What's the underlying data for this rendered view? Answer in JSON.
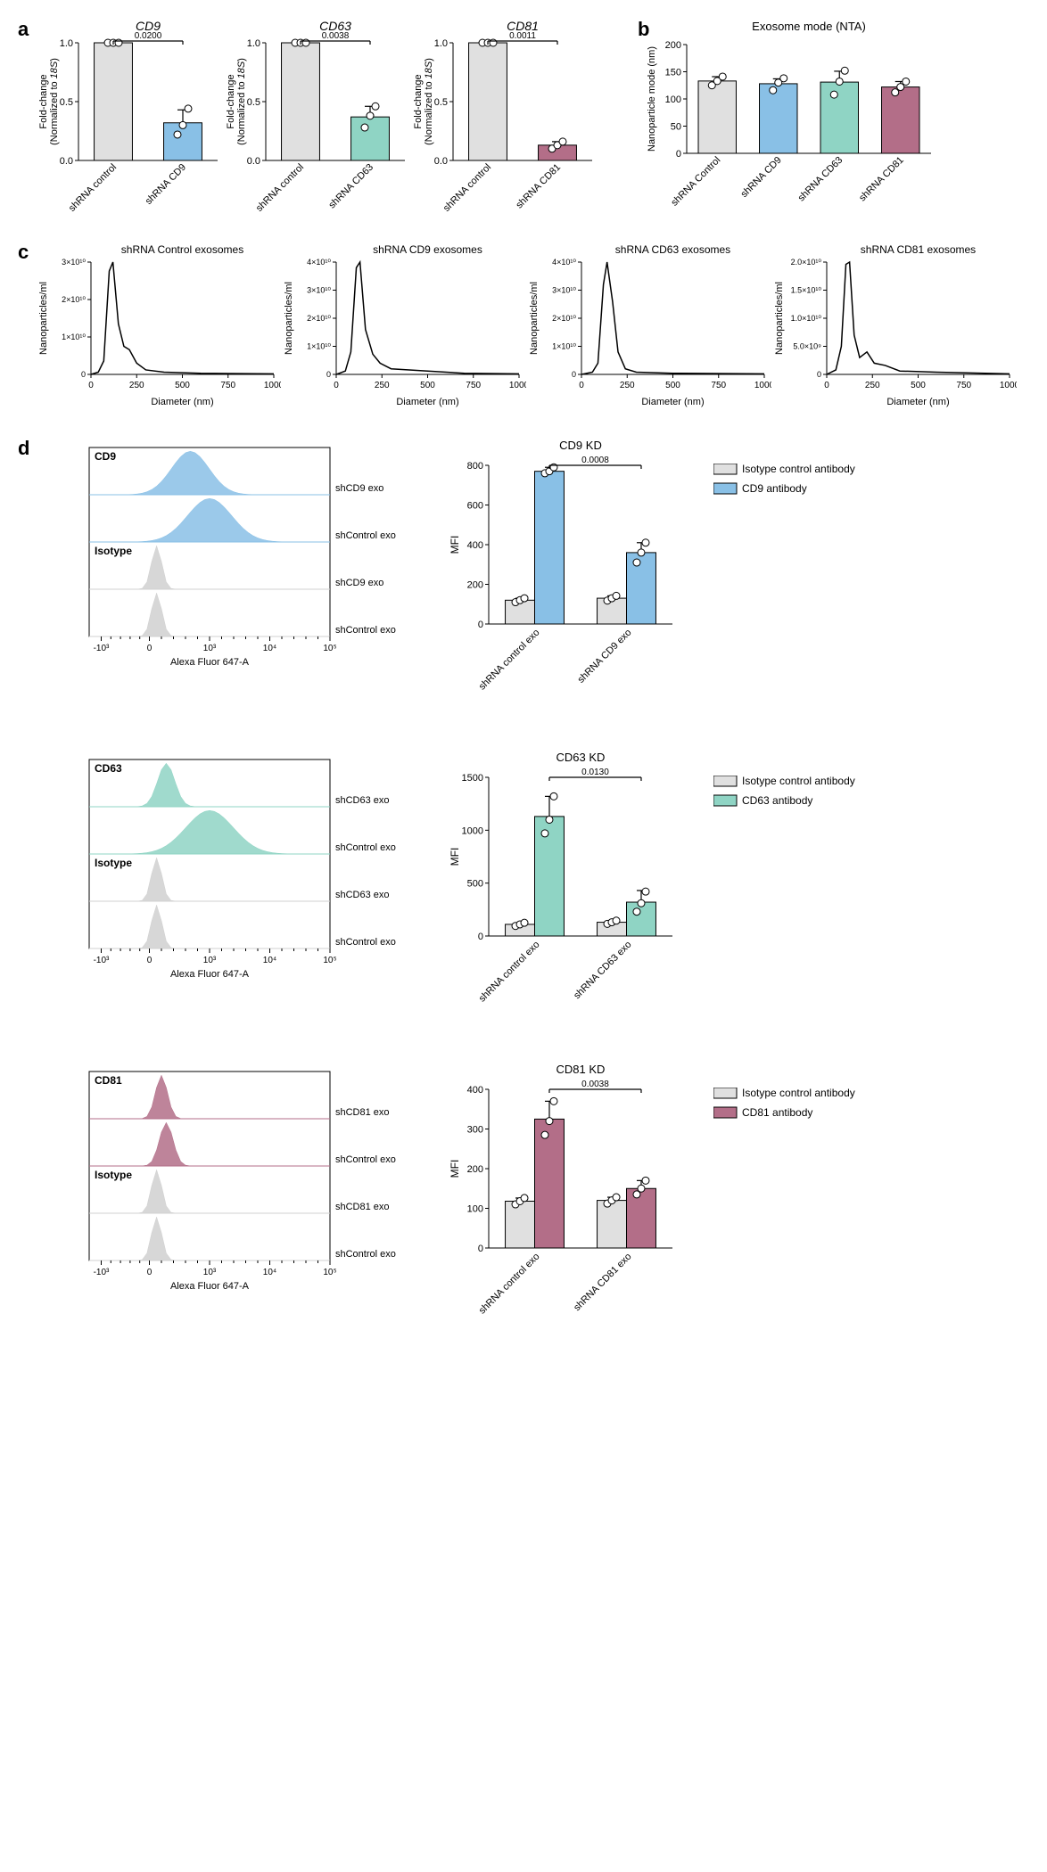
{
  "colors": {
    "control_gray": "#e0e0e0",
    "cd9_blue": "#89c0e6",
    "cd63_teal": "#8fd4c4",
    "cd81_plum": "#b36e88",
    "isotype_gray": "#d0d0d0",
    "axis": "#000000",
    "grid_bg": "#ffffff",
    "line_black": "#000000"
  },
  "panel_a": {
    "ylabel1": "Fold-change",
    "ylabel2": "(Normalized to ",
    "ylabel2_it": "18S",
    "ylabel2_end": ")",
    "ymax": 1.0,
    "ytick_step": 0.5,
    "charts": [
      {
        "title": "CD9",
        "pvalue": "0.0200",
        "categories": [
          "shRNA control",
          "shRNA CD9"
        ],
        "values": [
          1.0,
          0.32
        ],
        "errs": [
          0.0,
          0.11
        ],
        "dots": [
          [
            1.0,
            1.0,
            1.0
          ],
          [
            0.22,
            0.3,
            0.44
          ]
        ],
        "bar_colors": [
          "control_gray",
          "cd9_blue"
        ]
      },
      {
        "title": "CD63",
        "pvalue": "0.0038",
        "categories": [
          "shRNA control",
          "shRNA CD63"
        ],
        "values": [
          1.0,
          0.37
        ],
        "errs": [
          0.0,
          0.09
        ],
        "dots": [
          [
            1.0,
            1.0,
            1.0
          ],
          [
            0.28,
            0.38,
            0.46
          ]
        ],
        "bar_colors": [
          "control_gray",
          "cd63_teal"
        ]
      },
      {
        "title": "CD81",
        "pvalue": "0.0011",
        "categories": [
          "shRNA control",
          "shRNA CD81"
        ],
        "values": [
          1.0,
          0.13
        ],
        "errs": [
          0.0,
          0.03
        ],
        "dots": [
          [
            1.0,
            1.0,
            1.0
          ],
          [
            0.1,
            0.13,
            0.16
          ]
        ],
        "bar_colors": [
          "control_gray",
          "cd81_plum"
        ]
      }
    ]
  },
  "panel_b": {
    "title": "Exosome mode (NTA)",
    "ylabel": "Nanoparticle mode (nm)",
    "ymax": 200,
    "ytick_step": 50,
    "categories": [
      "shRNA Control",
      "shRNA CD9",
      "shRNA CD63",
      "shRNA CD81"
    ],
    "values": [
      133,
      128,
      131,
      122
    ],
    "errs": [
      8,
      9,
      20,
      10
    ],
    "dots": [
      [
        125,
        133,
        141
      ],
      [
        116,
        130,
        138
      ],
      [
        108,
        132,
        152
      ],
      [
        112,
        122,
        132
      ]
    ],
    "bar_colors": [
      "control_gray",
      "cd9_blue",
      "cd63_teal",
      "cd81_plum"
    ]
  },
  "panel_c": {
    "xlabel": "Diameter (nm)",
    "ylabel": "Nanoparticles/ml",
    "xmax": 1000,
    "xtick_step": 250,
    "charts": [
      {
        "title": "shRNA Control exosomes",
        "ymax": 30000000000.0,
        "yticks": [
          0,
          10000000000.0,
          20000000000.0,
          30000000000.0
        ],
        "ytick_labels": [
          "0",
          "1×10¹⁰",
          "2×10¹⁰",
          "3×10¹⁰"
        ]
      },
      {
        "title": "shRNA CD9 exosomes",
        "ymax": 40000000000.0,
        "yticks": [
          0,
          10000000000.0,
          20000000000.0,
          30000000000.0,
          40000000000.0
        ],
        "ytick_labels": [
          "0",
          "1×10¹⁰",
          "2×10¹⁰",
          "3×10¹⁰",
          "4×10¹⁰"
        ]
      },
      {
        "title": "shRNA CD63 exosomes",
        "ymax": 40000000000.0,
        "yticks": [
          0,
          10000000000.0,
          20000000000.0,
          30000000000.0,
          40000000000.0
        ],
        "ytick_labels": [
          "0",
          "1×10¹⁰",
          "2×10¹⁰",
          "3×10¹⁰",
          "4×10¹⁰"
        ]
      },
      {
        "title": "shRNA CD81 exosomes",
        "ymax": 20000000000.0,
        "yticks": [
          0,
          5000000000.0,
          10000000000.0,
          15000000000.0,
          20000000000.0
        ],
        "ytick_labels": [
          "0",
          "5.0×10⁹",
          "1.0×10¹⁰",
          "1.5×10¹⁰",
          "2.0×10¹⁰"
        ]
      }
    ],
    "curves": [
      [
        [
          0,
          0
        ],
        [
          40,
          0.02
        ],
        [
          70,
          0.12
        ],
        [
          100,
          0.92
        ],
        [
          120,
          1.0
        ],
        [
          150,
          0.45
        ],
        [
          180,
          0.25
        ],
        [
          210,
          0.22
        ],
        [
          250,
          0.1
        ],
        [
          300,
          0.04
        ],
        [
          400,
          0.02
        ],
        [
          600,
          0.01
        ],
        [
          1000,
          0.005
        ]
      ],
      [
        [
          0,
          0
        ],
        [
          50,
          0.03
        ],
        [
          80,
          0.2
        ],
        [
          110,
          0.95
        ],
        [
          130,
          1.0
        ],
        [
          160,
          0.4
        ],
        [
          200,
          0.18
        ],
        [
          240,
          0.1
        ],
        [
          300,
          0.05
        ],
        [
          400,
          0.04
        ],
        [
          500,
          0.03
        ],
        [
          700,
          0.01
        ],
        [
          1000,
          0.005
        ]
      ],
      [
        [
          0,
          0
        ],
        [
          60,
          0.02
        ],
        [
          90,
          0.1
        ],
        [
          120,
          0.8
        ],
        [
          140,
          1.0
        ],
        [
          170,
          0.65
        ],
        [
          200,
          0.2
        ],
        [
          240,
          0.05
        ],
        [
          300,
          0.02
        ],
        [
          500,
          0.01
        ],
        [
          1000,
          0.005
        ]
      ],
      [
        [
          0,
          0
        ],
        [
          50,
          0.04
        ],
        [
          80,
          0.25
        ],
        [
          105,
          0.98
        ],
        [
          125,
          1.0
        ],
        [
          150,
          0.35
        ],
        [
          180,
          0.15
        ],
        [
          220,
          0.2
        ],
        [
          260,
          0.1
        ],
        [
          320,
          0.08
        ],
        [
          400,
          0.03
        ],
        [
          600,
          0.02
        ],
        [
          1000,
          0.005
        ]
      ]
    ]
  },
  "panel_d": {
    "xlabel": "Alexa Fluor 647-A",
    "xlog_ticks": [
      "-10³",
      "0",
      "10³",
      "10⁴",
      "10⁵"
    ],
    "flow_rows": [
      {
        "antibody": "CD9",
        "antibody_color": "cd9_blue",
        "traces": [
          {
            "label": "shCD9 exo",
            "color": "cd9_blue",
            "peak_pos": 0.42,
            "width": 0.22
          },
          {
            "label": "shControl exo",
            "color": "cd9_blue",
            "peak_pos": 0.5,
            "width": 0.26
          },
          {
            "label": "shCD9 exo",
            "color": "isotype_gray",
            "peak_pos": 0.28,
            "width": 0.06
          },
          {
            "label": "shControl exo",
            "color": "isotype_gray",
            "peak_pos": 0.28,
            "width": 0.06
          }
        ],
        "isotype_label": "Isotype",
        "bar": {
          "title": "CD9 KD",
          "pvalue": "0.0008",
          "ylabel": "MFI",
          "ymax": 800,
          "ytick_step": 200,
          "groups": [
            "shRNA control exo",
            "shRNA CD9 exo"
          ],
          "legend": [
            "Isotype control antibody",
            "CD9 antibody"
          ],
          "legend_colors": [
            "control_gray",
            "cd9_blue"
          ],
          "values": [
            [
              120,
              770
            ],
            [
              130,
              360
            ]
          ],
          "errs": [
            [
              10,
              20
            ],
            [
              12,
              50
            ]
          ],
          "dots": [
            [
              [
                110,
                120,
                130
              ],
              [
                760,
                770,
                790
              ]
            ],
            [
              [
                118,
                130,
                142
              ],
              [
                310,
                360,
                410
              ]
            ]
          ]
        }
      },
      {
        "antibody": "CD63",
        "antibody_color": "cd63_teal",
        "traces": [
          {
            "label": "shCD63 exo",
            "color": "cd63_teal",
            "peak_pos": 0.32,
            "width": 0.1
          },
          {
            "label": "shControl exo",
            "color": "cd63_teal",
            "peak_pos": 0.5,
            "width": 0.28
          },
          {
            "label": "shCD63 exo",
            "color": "isotype_gray",
            "peak_pos": 0.28,
            "width": 0.06
          },
          {
            "label": "shControl exo",
            "color": "isotype_gray",
            "peak_pos": 0.28,
            "width": 0.06
          }
        ],
        "isotype_label": "Isotype",
        "bar": {
          "title": "CD63 KD",
          "pvalue": "0.0130",
          "ylabel": "MFI",
          "ymax": 1500,
          "ytick_step": 500,
          "groups": [
            "shRNA control exo",
            "shRNA CD63 exo"
          ],
          "legend": [
            "Isotype control antibody",
            "CD63 antibody"
          ],
          "legend_colors": [
            "control_gray",
            "cd63_teal"
          ],
          "values": [
            [
              110,
              1130
            ],
            [
              130,
              320
            ]
          ],
          "errs": [
            [
              15,
              190
            ],
            [
              15,
              110
            ]
          ],
          "dots": [
            [
              [
                95,
                110,
                125
              ],
              [
                970,
                1100,
                1320
              ]
            ],
            [
              [
                115,
                130,
                145
              ],
              [
                230,
                310,
                420
              ]
            ]
          ]
        }
      },
      {
        "antibody": "CD81",
        "antibody_color": "cd81_plum",
        "traces": [
          {
            "label": "shCD81 exo",
            "color": "cd81_plum",
            "peak_pos": 0.3,
            "width": 0.07
          },
          {
            "label": "shControl exo",
            "color": "cd81_plum",
            "peak_pos": 0.32,
            "width": 0.08
          },
          {
            "label": "shCD81 exo",
            "color": "isotype_gray",
            "peak_pos": 0.28,
            "width": 0.06
          },
          {
            "label": "shControl exo",
            "color": "isotype_gray",
            "peak_pos": 0.28,
            "width": 0.06
          }
        ],
        "isotype_label": "Isotype",
        "bar": {
          "title": "CD81 KD",
          "pvalue": "0.0038",
          "ylabel": "MFI",
          "ymax": 400,
          "ytick_step": 100,
          "groups": [
            "shRNA control exo",
            "shRNA CD81 exo"
          ],
          "legend": [
            "Isotype control antibody",
            "CD81 antibody"
          ],
          "legend_colors": [
            "control_gray",
            "cd81_plum"
          ],
          "values": [
            [
              118,
              325
            ],
            [
              120,
              150
            ]
          ],
          "errs": [
            [
              8,
              45
            ],
            [
              8,
              20
            ]
          ],
          "dots": [
            [
              [
                110,
                118,
                126
              ],
              [
                285,
                320,
                370
              ]
            ],
            [
              [
                112,
                120,
                128
              ],
              [
                135,
                150,
                170
              ]
            ]
          ]
        }
      }
    ]
  }
}
